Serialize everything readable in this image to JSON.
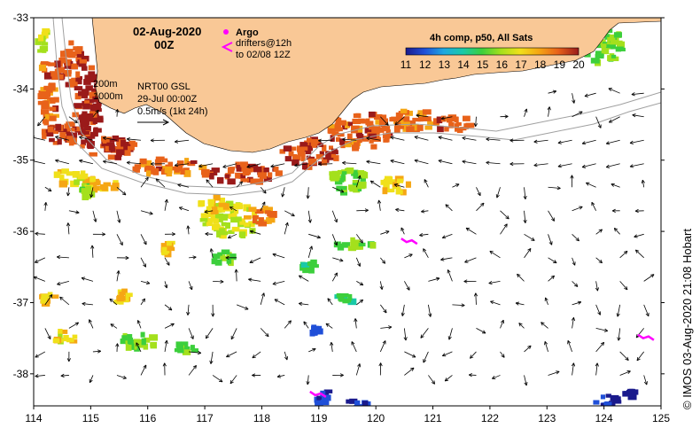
{
  "header": {
    "date": "02-Aug-2020",
    "time": "00Z"
  },
  "legend_argo": {
    "title": "Argo",
    "drifters_line1": "drifters@12h",
    "drifters_line2": "to 02/08 12Z",
    "argo_color": "#ff00ff"
  },
  "colorbar": {
    "title": "4h comp, p50, All Sats",
    "ticks": [
      "11",
      "12",
      "13",
      "14",
      "15",
      "16",
      "17",
      "18",
      "19",
      "20"
    ]
  },
  "info": {
    "iso_200": "200m",
    "iso_1000": "1000m",
    "source": "NRT00 GSL",
    "source_date": "29-Jul 00:00Z",
    "scale": "0.5m/s (1kt 24h)"
  },
  "axes": {
    "x_ticks": [
      "114",
      "115",
      "116",
      "117",
      "118",
      "119",
      "120",
      "121",
      "122",
      "123",
      "124",
      "125"
    ],
    "y_ticks": [
      "-33",
      "-34",
      "-35",
      "-36",
      "-37",
      "-38"
    ]
  },
  "credit": "© IMOS 03-Aug-2020 21:08 Hobart",
  "colors": {
    "land": "#f9c896",
    "isobath": "#a0a0a0",
    "argo": "#ff00ff"
  },
  "sst_patches": [
    {
      "lon": 114.6,
      "lat": -33.6,
      "rx": 0.25,
      "ry": 0.35,
      "temp": 19.5
    },
    {
      "lon": 114.9,
      "lat": -34.2,
      "rx": 0.25,
      "ry": 0.55,
      "temp": 20.0
    },
    {
      "lon": 114.2,
      "lat": -34.0,
      "rx": 0.18,
      "ry": 0.45,
      "temp": 19.0
    },
    {
      "lon": 114.1,
      "lat": -33.3,
      "rx": 0.08,
      "ry": 0.2,
      "temp": 16.5
    },
    {
      "lon": 115.3,
      "lat": -34.8,
      "rx": 0.5,
      "ry": 0.15,
      "temp": 19.5
    },
    {
      "lon": 114.5,
      "lat": -34.6,
      "rx": 0.4,
      "ry": 0.15,
      "temp": 19.8
    },
    {
      "lon": 116.3,
      "lat": -35.05,
      "rx": 0.6,
      "ry": 0.12,
      "temp": 19.0
    },
    {
      "lon": 117.6,
      "lat": -35.15,
      "rx": 0.7,
      "ry": 0.13,
      "temp": 19.2
    },
    {
      "lon": 118.8,
      "lat": -34.85,
      "rx": 0.5,
      "ry": 0.2,
      "temp": 19.5
    },
    {
      "lon": 119.7,
      "lat": -34.55,
      "rx": 0.55,
      "ry": 0.25,
      "temp": 19.0
    },
    {
      "lon": 120.6,
      "lat": -34.4,
      "rx": 0.45,
      "ry": 0.15,
      "temp": 18.5
    },
    {
      "lon": 121.3,
      "lat": -34.45,
      "rx": 0.35,
      "ry": 0.1,
      "temp": 19.0
    },
    {
      "lon": 115.1,
      "lat": -35.3,
      "rx": 0.35,
      "ry": 0.1,
      "temp": 17.5
    },
    {
      "lon": 114.6,
      "lat": -35.2,
      "rx": 0.3,
      "ry": 0.1,
      "temp": 17.0
    },
    {
      "lon": 114.9,
      "lat": -35.4,
      "rx": 0.15,
      "ry": 0.1,
      "temp": 16.0
    },
    {
      "lon": 117.4,
      "lat": -35.8,
      "rx": 0.5,
      "ry": 0.25,
      "temp": 16.5
    },
    {
      "lon": 117.1,
      "lat": -35.6,
      "rx": 0.25,
      "ry": 0.12,
      "temp": 17.5
    },
    {
      "lon": 117.9,
      "lat": -35.75,
      "rx": 0.25,
      "ry": 0.15,
      "temp": 18.5
    },
    {
      "lon": 119.45,
      "lat": -35.25,
      "rx": 0.35,
      "ry": 0.2,
      "temp": 15.5
    },
    {
      "lon": 120.3,
      "lat": -35.3,
      "rx": 0.3,
      "ry": 0.12,
      "temp": 17.5
    },
    {
      "lon": 123.95,
      "lat": -33.35,
      "rx": 0.35,
      "ry": 0.25,
      "temp": 15.5
    },
    {
      "lon": 116.3,
      "lat": -36.2,
      "rx": 0.1,
      "ry": 0.08,
      "temp": 17.5
    },
    {
      "lon": 117.3,
      "lat": -36.35,
      "rx": 0.2,
      "ry": 0.1,
      "temp": 15.5
    },
    {
      "lon": 119.6,
      "lat": -36.15,
      "rx": 0.35,
      "ry": 0.08,
      "temp": 15.5
    },
    {
      "lon": 114.2,
      "lat": -36.9,
      "rx": 0.12,
      "ry": 0.1,
      "temp": 17.5
    },
    {
      "lon": 115.5,
      "lat": -36.9,
      "rx": 0.12,
      "ry": 0.12,
      "temp": 17.5
    },
    {
      "lon": 115.8,
      "lat": -37.5,
      "rx": 0.35,
      "ry": 0.12,
      "temp": 15.5
    },
    {
      "lon": 116.6,
      "lat": -37.6,
      "rx": 0.2,
      "ry": 0.08,
      "temp": 15.0
    },
    {
      "lon": 119.4,
      "lat": -36.9,
      "rx": 0.15,
      "ry": 0.06,
      "temp": 15.0
    },
    {
      "lon": 118.8,
      "lat": -36.45,
      "rx": 0.15,
      "ry": 0.06,
      "temp": 15.0
    },
    {
      "lon": 114.5,
      "lat": -37.45,
      "rx": 0.2,
      "ry": 0.1,
      "temp": 17.0
    },
    {
      "lon": 119.05,
      "lat": -38.3,
      "rx": 0.15,
      "ry": 0.1,
      "temp": 11.5
    },
    {
      "lon": 119.6,
      "lat": -38.4,
      "rx": 0.2,
      "ry": 0.06,
      "temp": 11.5
    },
    {
      "lon": 124.0,
      "lat": -38.35,
      "rx": 0.2,
      "ry": 0.07,
      "temp": 11.5
    },
    {
      "lon": 118.9,
      "lat": -37.35,
      "rx": 0.08,
      "ry": 0.06,
      "temp": 11.8
    },
    {
      "lon": 124.4,
      "lat": -38.25,
      "rx": 0.1,
      "ry": 0.05,
      "temp": 11.5
    }
  ],
  "drifters": [
    {
      "lon": 120.6,
      "lat": -36.15
    },
    {
      "lon": 119.0,
      "lat": -38.3
    },
    {
      "lon": 124.75,
      "lat": -37.5
    }
  ]
}
